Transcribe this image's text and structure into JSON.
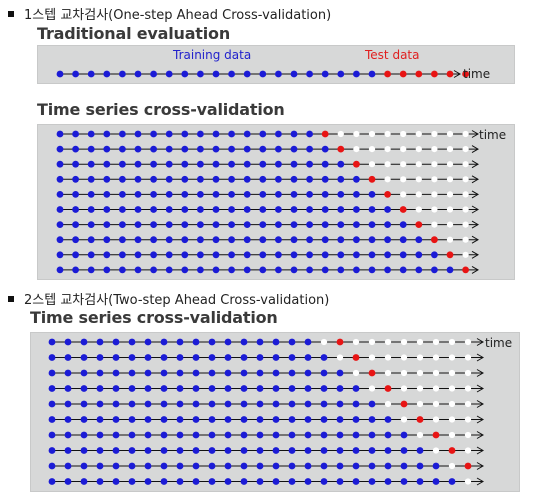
{
  "sections": [
    {
      "heading": "1스텝 교차검사(One-step Ahead Cross-validation)"
    },
    {
      "heading": "2스텝 교차검사(Two-step Ahead Cross-validation)"
    }
  ],
  "traditional": {
    "title": "Traditional evaluation",
    "training_label": "Training data",
    "test_label": "Test data",
    "axis_label": "time",
    "points": 27,
    "test_count": 6
  },
  "cv1": {
    "title": "Time series cross-validation",
    "axis_label": "time",
    "points": 27,
    "rows": 10,
    "first_train": 17,
    "step_gap": 1
  },
  "cv2": {
    "title": "Time series cross-validation",
    "axis_label": "time",
    "points": 27,
    "rows": 10,
    "first_train": 17,
    "step_gap": 2
  },
  "colors": {
    "train": "#1b1bd6",
    "test": "#e81414",
    "unused": "#ffffff",
    "line": "#111111",
    "panel": "#d7d8d8"
  }
}
